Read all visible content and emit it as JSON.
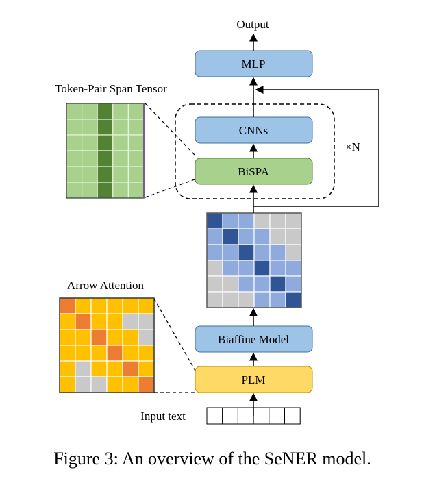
{
  "labels": {
    "output": "Output",
    "mlp": "MLP",
    "cnns": "CNNs",
    "bispa": "BiSPA",
    "repeat": "×N",
    "biaffine": "Biaffine Model",
    "plm": "PLM",
    "input": "Input text",
    "span_tensor": "Token-Pair Span Tensor",
    "arrow_attention": "Arrow Attention"
  },
  "caption": "Figure 3: An overview of the SeNER model.",
  "colors": {
    "blue_box": "#9dc3e6",
    "green_box": "#a9d18e",
    "yellow_box": "#ffd966",
    "blue_dark": "#2f5597",
    "blue_light": "#8faadc",
    "gray": "#c9c9c9",
    "orange": "#ed7d31",
    "yellow": "#ffc000",
    "green_light": "#a9d18e",
    "green_dark": "#548235"
  },
  "biaffine_matrix": [
    "DLLGGG",
    "LDLLGG",
    "LLDLLG",
    "GLLDLL",
    "GGLLDL",
    "GGGLLD"
  ],
  "arrow_attention_matrix": [
    "RYYYYY",
    "YRYYGG",
    "YYRYYG",
    "YYYRYY",
    "YGYYRY",
    "YGGYYR"
  ],
  "span_tensor": {
    "rows": 6,
    "cols": 5,
    "dark_col": 2
  },
  "input_tokens": 6
}
